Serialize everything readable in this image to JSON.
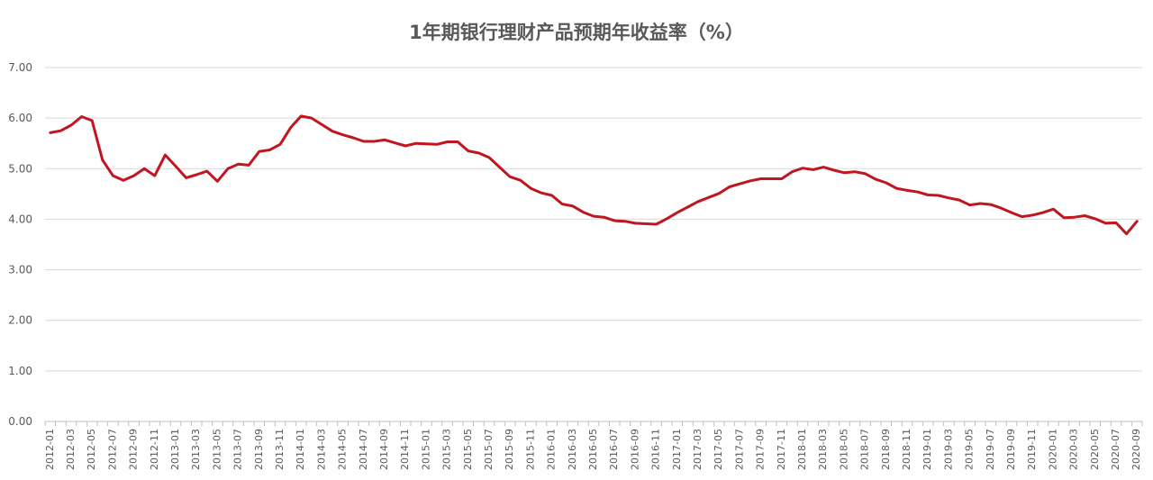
{
  "chart_data": {
    "type": "line",
    "title": "1年期银行理财产品预期年收益率（%）",
    "xlabel": "",
    "ylabel": "",
    "ylim": [
      0,
      7
    ],
    "yticks": [
      "0.00",
      "1.00",
      "2.00",
      "3.00",
      "4.00",
      "5.00",
      "6.00",
      "7.00"
    ],
    "grid": "horizontal",
    "legend": "none",
    "line_color": "#c0161f",
    "xtick_labels": [
      "2012-01",
      "2012-03",
      "2012-05",
      "2012-07",
      "2012-09",
      "2012-11",
      "2013-01",
      "2013-03",
      "2013-05",
      "2013-07",
      "2013-09",
      "2013-11",
      "2014-01",
      "2014-03",
      "2014-05",
      "2014-07",
      "2014-09",
      "2014-11",
      "2015-01",
      "2015-03",
      "2015-05",
      "2015-07",
      "2015-09",
      "2015-11",
      "2016-01",
      "2016-03",
      "2016-05",
      "2016-07",
      "2016-09",
      "2016-11",
      "2017-01",
      "2017-03",
      "2017-05",
      "2017-07",
      "2017-09",
      "2017-11",
      "2018-01",
      "2018-03",
      "2018-05",
      "2018-07",
      "2018-09",
      "2018-11",
      "2019-01",
      "2019-03",
      "2019-05",
      "2019-07",
      "2019-09",
      "2019-11",
      "2020-01",
      "2020-03",
      "2020-05",
      "2020-07",
      "2020-09"
    ],
    "x": [
      "2012-01",
      "2012-02",
      "2012-03",
      "2012-04",
      "2012-05",
      "2012-06",
      "2012-07",
      "2012-08",
      "2012-09",
      "2012-10",
      "2012-11",
      "2012-12",
      "2013-01",
      "2013-02",
      "2013-03",
      "2013-04",
      "2013-05",
      "2013-06",
      "2013-07",
      "2013-08",
      "2013-09",
      "2013-10",
      "2013-11",
      "2013-12",
      "2014-01",
      "2014-02",
      "2014-03",
      "2014-04",
      "2014-05",
      "2014-06",
      "2014-07",
      "2014-08",
      "2014-09",
      "2014-10",
      "2014-11",
      "2014-12",
      "2015-01",
      "2015-02",
      "2015-03",
      "2015-04",
      "2015-05",
      "2015-06",
      "2015-07",
      "2015-08",
      "2015-09",
      "2015-10",
      "2015-11",
      "2015-12",
      "2016-01",
      "2016-02",
      "2016-03",
      "2016-04",
      "2016-05",
      "2016-06",
      "2016-07",
      "2016-08",
      "2016-09",
      "2016-10",
      "2016-11",
      "2016-12",
      "2017-01",
      "2017-02",
      "2017-03",
      "2017-04",
      "2017-05",
      "2017-06",
      "2017-07",
      "2017-08",
      "2017-09",
      "2017-10",
      "2017-11",
      "2017-12",
      "2018-01",
      "2018-02",
      "2018-03",
      "2018-04",
      "2018-05",
      "2018-06",
      "2018-07",
      "2018-08",
      "2018-09",
      "2018-10",
      "2018-11",
      "2018-12",
      "2019-01",
      "2019-02",
      "2019-03",
      "2019-04",
      "2019-05",
      "2019-06",
      "2019-07",
      "2019-08",
      "2019-09",
      "2019-10",
      "2019-11",
      "2019-12",
      "2020-01",
      "2020-02",
      "2020-03",
      "2020-04",
      "2020-05",
      "2020-06",
      "2020-07",
      "2020-08",
      "2020-09"
    ],
    "series": [
      {
        "values": [
          5.71,
          5.75,
          5.86,
          6.03,
          5.95,
          5.17,
          4.86,
          4.77,
          4.86,
          5.0,
          4.86,
          5.27,
          5.05,
          4.82,
          4.88,
          4.95,
          4.75,
          5.0,
          5.09,
          5.07,
          5.34,
          5.37,
          5.48,
          5.81,
          6.04,
          6.0,
          5.87,
          5.74,
          5.67,
          5.61,
          5.54,
          5.54,
          5.57,
          5.51,
          5.45,
          5.5,
          5.49,
          5.48,
          5.53,
          5.53,
          5.35,
          5.31,
          5.22,
          5.03,
          4.84,
          4.77,
          4.61,
          4.52,
          4.47,
          4.3,
          4.26,
          4.14,
          4.06,
          4.04,
          3.97,
          3.96,
          3.92,
          3.91,
          3.9,
          4.01,
          4.13,
          4.24,
          4.35,
          4.43,
          4.51,
          4.64,
          4.7,
          4.76,
          4.8,
          4.8,
          4.8,
          4.94,
          5.01,
          4.98,
          5.03,
          4.97,
          4.92,
          4.94,
          4.9,
          4.79,
          4.72,
          4.61,
          4.57,
          4.54,
          4.48,
          4.47,
          4.42,
          4.38,
          4.28,
          4.31,
          4.29,
          4.22,
          4.13,
          4.05,
          4.08,
          4.13,
          4.2,
          4.03,
          4.04,
          4.07,
          4.01,
          3.92,
          3.93,
          3.71,
          3.96
        ]
      }
    ]
  }
}
